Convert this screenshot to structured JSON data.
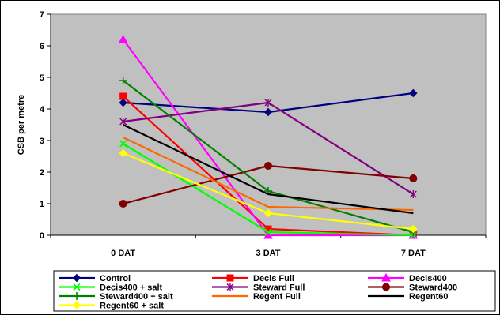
{
  "chart_data": {
    "type": "line",
    "title": "",
    "xlabel": "",
    "ylabel": "CSB per metre",
    "categories": [
      "0 DAT",
      "3 DAT",
      "7 DAT"
    ],
    "ylim": [
      0,
      7
    ],
    "yticks": [
      0,
      1,
      2,
      3,
      4,
      5,
      6,
      7
    ],
    "grid": false,
    "plot_background": "#C0C0C0",
    "legend_position": "bottom",
    "series": [
      {
        "name": "Control",
        "values": [
          4.2,
          3.9,
          4.5
        ],
        "color": "#000080",
        "marker": "diamond"
      },
      {
        "name": "Decis Full",
        "values": [
          4.4,
          0.2,
          0.0
        ],
        "color": "#FF0000",
        "marker": "square"
      },
      {
        "name": "Decis400",
        "values": [
          6.2,
          0.0,
          0.0
        ],
        "color": "#FF00FF",
        "marker": "triangle"
      },
      {
        "name": "Decis400 + salt",
        "values": [
          2.9,
          0.1,
          0.0
        ],
        "color": "#00FF00",
        "marker": "x"
      },
      {
        "name": "Steward Full",
        "values": [
          3.6,
          4.2,
          1.3
        ],
        "color": "#800080",
        "marker": "star"
      },
      {
        "name": "Steward400",
        "values": [
          1.0,
          2.2,
          1.8
        ],
        "color": "#800000",
        "marker": "circle"
      },
      {
        "name": "Steward400 + salt",
        "values": [
          4.9,
          1.4,
          0.1
        ],
        "color": "#008000",
        "marker": "plus"
      },
      {
        "name": "Regent Full",
        "values": [
          3.1,
          0.9,
          0.8
        ],
        "color": "#FF6600",
        "marker": "none"
      },
      {
        "name": "Regent60",
        "values": [
          3.5,
          1.3,
          0.7
        ],
        "color": "#000000",
        "marker": "none"
      },
      {
        "name": "Regent60 + salt",
        "values": [
          2.6,
          0.7,
          0.2
        ],
        "color": "#FFFF00",
        "marker": "diamond"
      }
    ]
  }
}
